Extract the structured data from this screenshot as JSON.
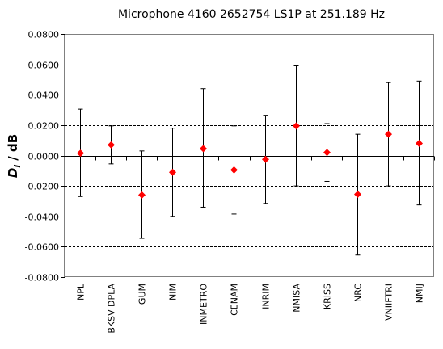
{
  "chart_data": {
    "type": "scatter",
    "title": "Microphone 4160 2652754  LS1P at 251.189 Hz",
    "ylabel_main": "D",
    "ylabel_sub": "i",
    "ylabel_rest": " / dB",
    "xlabel": "",
    "ylim": [
      -0.08,
      0.08
    ],
    "yticks": [
      0.08,
      0.06,
      0.04,
      0.02,
      0.0,
      -0.02,
      -0.04,
      -0.06,
      -0.08
    ],
    "ytick_labels": [
      "0.0800",
      "0.0600",
      "0.0400",
      "0.0200",
      "0.0000",
      "-0.0200",
      "-0.0400",
      "-0.0600",
      "-0.0800"
    ],
    "grid": "horizontal dashed",
    "categories": [
      "NPL",
      "BKSV-DPLA",
      "GUM",
      "NIM",
      "INMETRO",
      "CENAM",
      "INRIM",
      "NMISA",
      "KRISS",
      "NRC",
      "VNIIFTRI",
      "NMIJ"
    ],
    "values": [
      0.0015,
      0.007,
      -0.026,
      -0.011,
      0.0045,
      -0.0095,
      -0.0025,
      0.0195,
      0.002,
      -0.0255,
      0.014,
      0.008
    ],
    "error_upper": [
      0.0305,
      0.0195,
      0.003,
      0.018,
      0.044,
      0.0195,
      0.0265,
      0.059,
      0.021,
      0.014,
      0.048,
      0.049
    ],
    "error_lower": [
      -0.027,
      -0.0055,
      -0.0545,
      -0.04,
      -0.034,
      -0.0385,
      -0.0315,
      -0.02,
      -0.017,
      -0.0655,
      -0.02,
      -0.0325
    ],
    "marker_color": "#ff0000",
    "errorbar_color": "#000000",
    "grid_color": "#000000"
  }
}
